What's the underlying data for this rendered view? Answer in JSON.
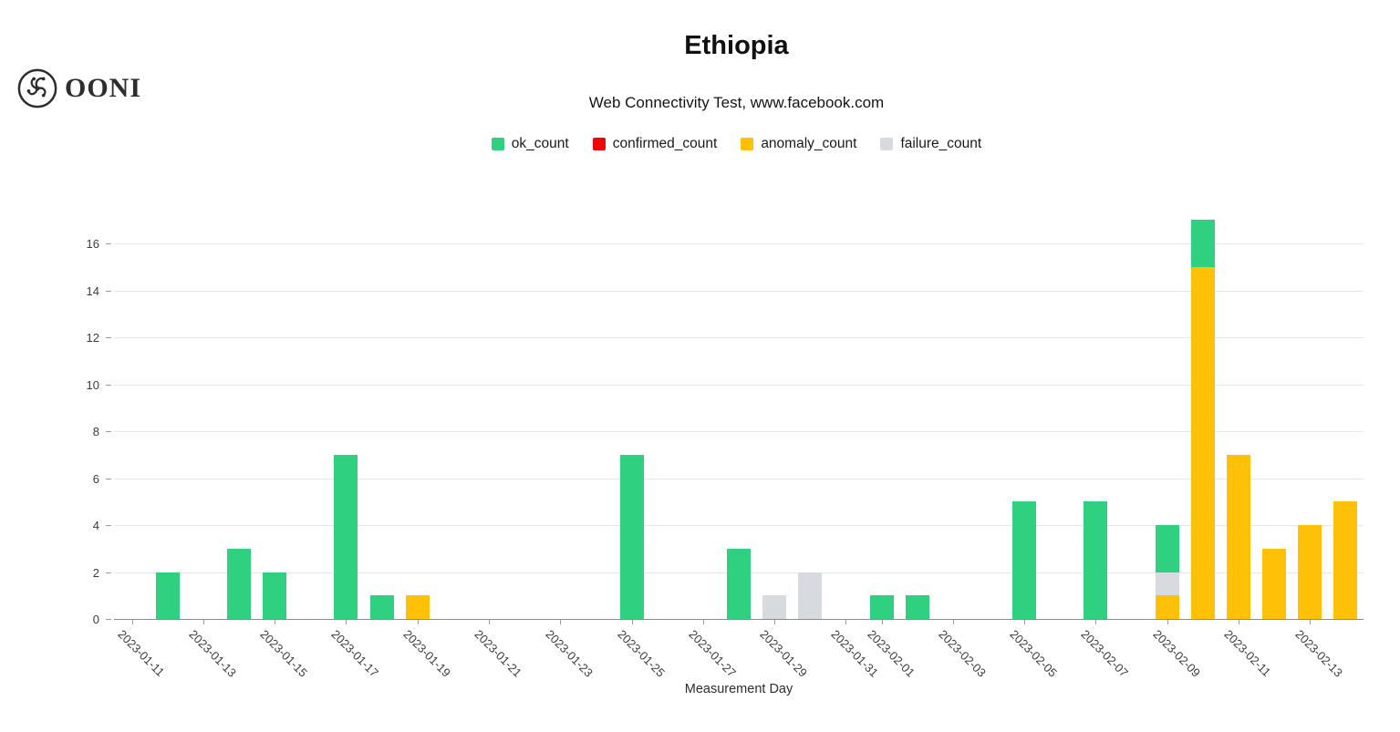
{
  "header": {
    "brand": "OONI",
    "title": "Ethiopia",
    "subtitle": "Web Connectivity Test, www.facebook.com"
  },
  "legend": {
    "items": [
      {
        "label": "ok_count",
        "color": "#2FD180"
      },
      {
        "label": "confirmed_count",
        "color": "#ED0707"
      },
      {
        "label": "anomaly_count",
        "color": "#FFC107"
      },
      {
        "label": "failure_count",
        "color": "#D7DBDF"
      }
    ]
  },
  "chart_data": {
    "type": "bar",
    "stacked": true,
    "title": "Ethiopia",
    "subtitle": "Web Connectivity Test, www.facebook.com",
    "xlabel": "Measurement Day",
    "ylabel": "",
    "yticks": [
      0,
      2,
      4,
      6,
      8,
      10,
      12,
      14,
      16
    ],
    "ylim": [
      0,
      17
    ],
    "grid": true,
    "legend_position": "top",
    "stack_order": [
      "confirmed_count",
      "anomaly_count",
      "failure_count",
      "ok_count"
    ],
    "categories": [
      "2023-01-11",
      "2023-01-12",
      "2023-01-13",
      "2023-01-14",
      "2023-01-15",
      "2023-01-16",
      "2023-01-17",
      "2023-01-18",
      "2023-01-19",
      "2023-01-20",
      "2023-01-21",
      "2023-01-22",
      "2023-01-23",
      "2023-01-24",
      "2023-01-25",
      "2023-01-26",
      "2023-01-27",
      "2023-01-28",
      "2023-01-29",
      "2023-01-30",
      "2023-01-31",
      "2023-02-01",
      "2023-02-02",
      "2023-02-03",
      "2023-02-04",
      "2023-02-05",
      "2023-02-06",
      "2023-02-07",
      "2023-02-08",
      "2023-02-09",
      "2023-02-10",
      "2023-02-11",
      "2023-02-12",
      "2023-02-13",
      "2023-02-14"
    ],
    "xticks": [
      "2023-01-11",
      "2023-01-13",
      "2023-01-15",
      "2023-01-17",
      "2023-01-19",
      "2023-01-21",
      "2023-01-23",
      "2023-01-25",
      "2023-01-27",
      "2023-01-29",
      "2023-01-31",
      "2023-02-01",
      "2023-02-03",
      "2023-02-05",
      "2023-02-07",
      "2023-02-09",
      "2023-02-11",
      "2023-02-13"
    ],
    "series": [
      {
        "name": "ok_count",
        "color": "#2FD180",
        "values": [
          0,
          2,
          0,
          3,
          2,
          0,
          7,
          1,
          0,
          0,
          0,
          0,
          0,
          0,
          7,
          0,
          0,
          3,
          0,
          0,
          0,
          1,
          1,
          0,
          0,
          5,
          0,
          5,
          0,
          2,
          2,
          0,
          0,
          0,
          0
        ]
      },
      {
        "name": "confirmed_count",
        "color": "#ED0707",
        "values": [
          0,
          0,
          0,
          0,
          0,
          0,
          0,
          0,
          0,
          0,
          0,
          0,
          0,
          0,
          0,
          0,
          0,
          0,
          0,
          0,
          0,
          0,
          0,
          0,
          0,
          0,
          0,
          0,
          0,
          0,
          0,
          0,
          0,
          0,
          0
        ]
      },
      {
        "name": "anomaly_count",
        "color": "#FFC107",
        "values": [
          0,
          0,
          0,
          0,
          0,
          0,
          0,
          0,
          1,
          0,
          0,
          0,
          0,
          0,
          0,
          0,
          0,
          0,
          0,
          0,
          0,
          0,
          0,
          0,
          0,
          0,
          0,
          0,
          0,
          1,
          15,
          7,
          3,
          4,
          5
        ]
      },
      {
        "name": "failure_count",
        "color": "#D7DBDF",
        "values": [
          0,
          0,
          0,
          0,
          0,
          0,
          0,
          0,
          0,
          0,
          0,
          0,
          0,
          0,
          0,
          0,
          0,
          0,
          1,
          2,
          0,
          0,
          0,
          0,
          0,
          0,
          0,
          0,
          0,
          1,
          0,
          0,
          0,
          0,
          0
        ]
      }
    ]
  }
}
